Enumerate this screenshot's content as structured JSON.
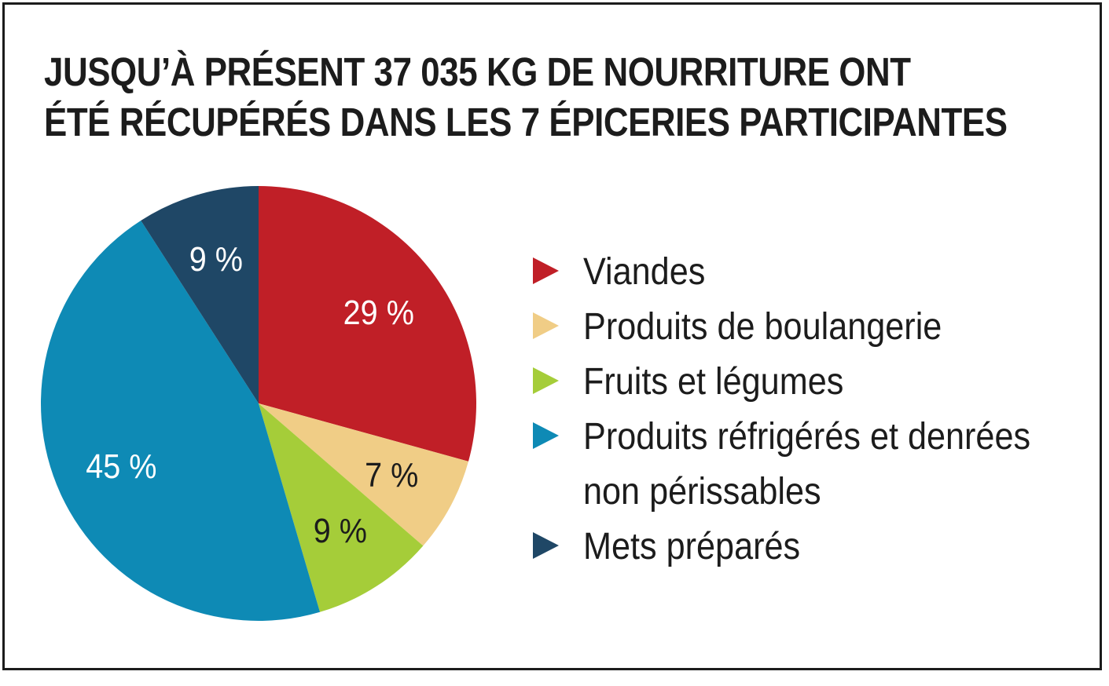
{
  "chart_data": {
    "type": "pie",
    "title": [
      "JUSQU’À PRÉSENT 37 035 KG DE NOURRITURE ONT",
      "ÉTÉ RÉCUPÉRÉS DANS LES 7 ÉPICERIES PARTICIPANTES"
    ],
    "slices": [
      {
        "label": "Viandes",
        "value": 29,
        "value_label": "29 %",
        "color": "#c01f27",
        "text_color": "#ffffff"
      },
      {
        "label": "Produits de boulangerie",
        "value": 7,
        "value_label": "7 %",
        "color": "#f0cd86",
        "text_color": "#1c1c1c"
      },
      {
        "label": "Fruits et légumes",
        "value": 9,
        "value_label": "9 %",
        "color": "#a5cd39",
        "text_color": "#1c1c1c"
      },
      {
        "label": "Produits réfrigérés et denrées non périssables",
        "value": 45,
        "value_label": "45 %",
        "color": "#0e8ab5",
        "text_color": "#ffffff"
      },
      {
        "label": "Mets préparés",
        "value": 9,
        "value_label": "9 %",
        "color": "#1f4766",
        "text_color": "#ffffff"
      }
    ],
    "start_angle": "12 o'clock",
    "direction": "clockwise",
    "legend_position": "right"
  }
}
